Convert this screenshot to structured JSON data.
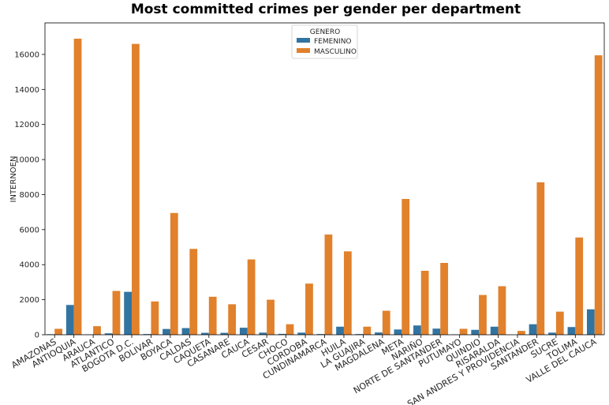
{
  "chart_data": {
    "type": "bar",
    "title": "Most committed crimes per gender per department",
    "xlabel": "",
    "ylabel": "INTERNOEN",
    "ylim": [
      0,
      17800
    ],
    "yticks": [
      0,
      2000,
      4000,
      6000,
      8000,
      10000,
      12000,
      14000,
      16000
    ],
    "legend": {
      "title": "GENERO",
      "placement": "top-center"
    },
    "categories": [
      "AMAZONAS",
      "ANTIOQUIA",
      "ARAUCA",
      "ATLANTICO",
      "BOGOTA D.C.",
      "BOLIVAR",
      "BOYACA",
      "CALDAS",
      "CAQUETA",
      "CASANARE",
      "CAUCA",
      "CESAR",
      "CHOCO",
      "CORDOBA",
      "CUNDINAMARCA",
      "HUILA",
      "LA GUAJIRA",
      "MAGDALENA",
      "META",
      "NARIÑO",
      "NORTE DE SANTANDER",
      "PUTUMAYO",
      "QUINDIO",
      "RISARALDA",
      "SAN ANDRES Y PROVIDENCIA",
      "SANTANDER",
      "SUCRE",
      "TOLIMA",
      "VALLE DEL CAUCA"
    ],
    "series": [
      {
        "name": "FEMENINO",
        "color": "#3274a1",
        "values": [
          30,
          1700,
          20,
          80,
          2450,
          40,
          330,
          380,
          110,
          110,
          400,
          120,
          50,
          120,
          40,
          460,
          40,
          130,
          300,
          530,
          350,
          20,
          280,
          460,
          0,
          600,
          120,
          440,
          1450
        ]
      },
      {
        "name": "MASCULINO",
        "color": "#e1812c",
        "values": [
          340,
          16900,
          490,
          2500,
          16600,
          1900,
          6950,
          4900,
          2170,
          1740,
          4300,
          2000,
          600,
          2920,
          5720,
          4760,
          460,
          1370,
          7750,
          3650,
          4100,
          340,
          2270,
          2770,
          220,
          8700,
          1320,
          5550,
          15950
        ]
      }
    ]
  }
}
